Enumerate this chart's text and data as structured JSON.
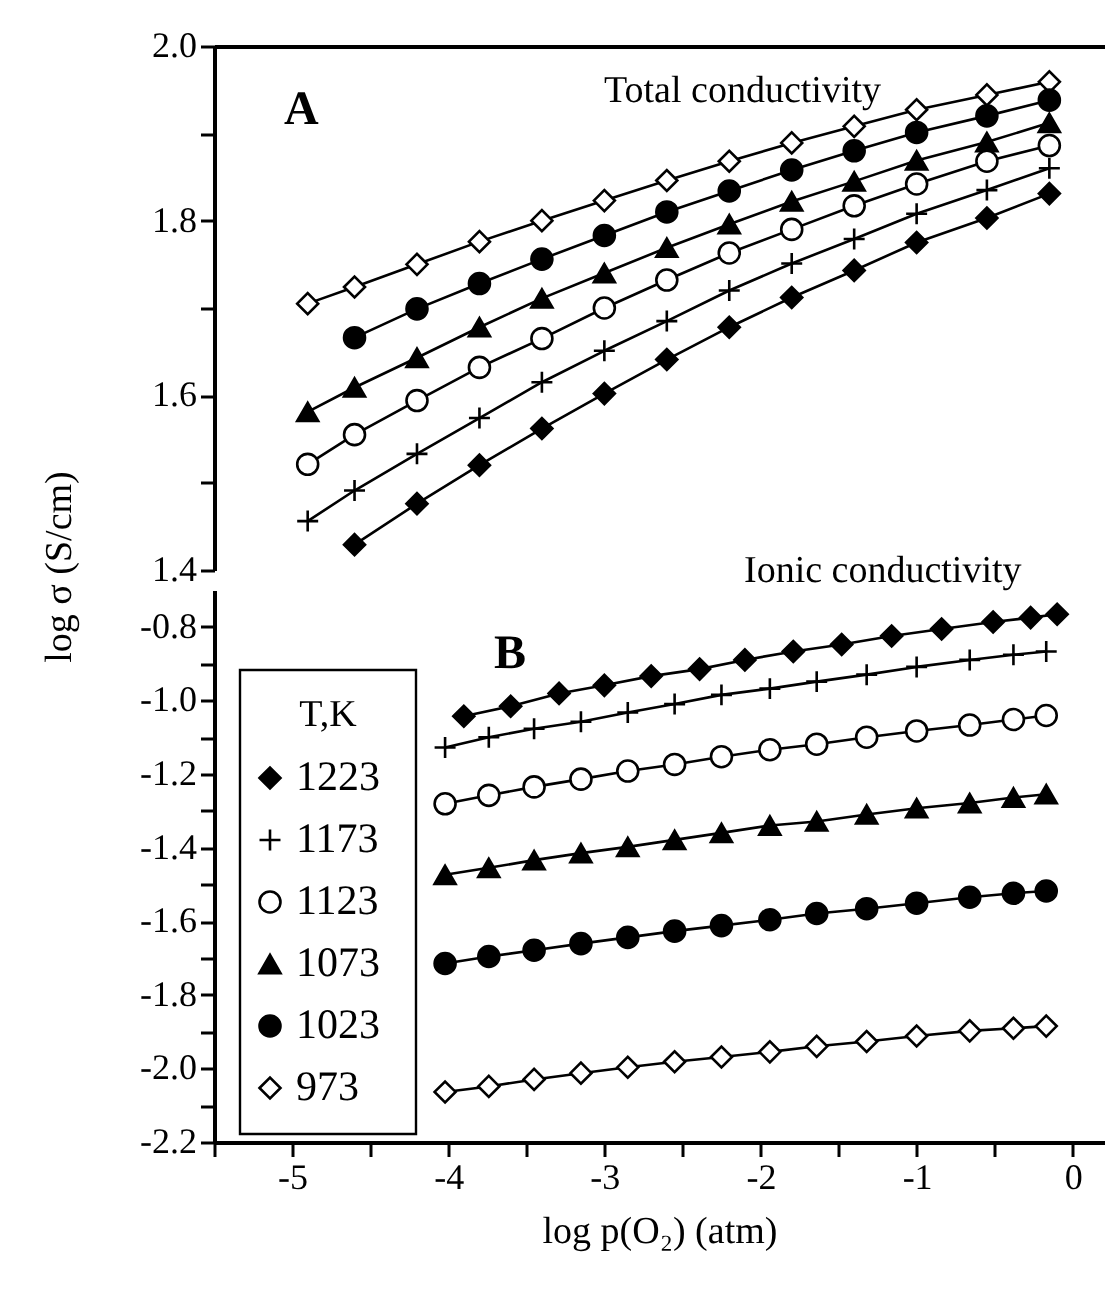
{
  "chart_data": [
    {
      "type": "line",
      "annotations": [
        "A",
        "Total conductivity",
        "Ionic conductivity"
      ],
      "tick_labels": "y",
      "xlim": [
        -5.5,
        0.2
      ],
      "ylim": [
        1.4,
        2.0
      ],
      "yticks": [
        {
          "value": 1.4,
          "label": "1.4"
        },
        {
          "value": 1.5,
          "label": null
        },
        {
          "value": 1.6,
          "label": "1.6"
        },
        {
          "value": 1.7,
          "label": null
        },
        {
          "value": 1.8,
          "label": "1.8"
        },
        {
          "value": 1.9,
          "label": null
        },
        {
          "value": 2.0,
          "label": "2.0"
        }
      ],
      "grid": false,
      "legend": false,
      "x": [
        -4.9,
        -4.6,
        -4.2,
        -3.8,
        -3.4,
        -3.0,
        -2.6,
        -2.2,
        -1.8,
        -1.4,
        -1.0,
        -0.55,
        -0.15
      ],
      "series": [
        {
          "color": "#000000",
          "marker": "diamond-open",
          "values": [
            1.705,
            1.724,
            1.75,
            1.776,
            1.8,
            1.823,
            1.846,
            1.868,
            1.889,
            1.908,
            1.927,
            1.944,
            1.959
          ]
        },
        {
          "color": "#000000",
          "marker": "circle",
          "x": [
            -4.6,
            -4.2,
            -3.8,
            -3.4,
            -3.0,
            -2.6,
            -2.2,
            -1.8,
            -1.4,
            -1.0,
            -0.55,
            -0.15
          ],
          "values": [
            1.666,
            1.699,
            1.728,
            1.756,
            1.783,
            1.81,
            1.834,
            1.858,
            1.88,
            1.901,
            1.92,
            1.938
          ]
        },
        {
          "color": "#000000",
          "marker": "triangle",
          "values": [
            1.581,
            1.609,
            1.643,
            1.678,
            1.711,
            1.74,
            1.769,
            1.796,
            1.822,
            1.845,
            1.869,
            1.89,
            1.912
          ]
        },
        {
          "color": "#000000",
          "marker": "circle-open",
          "values": [
            1.521,
            1.555,
            1.594,
            1.632,
            1.665,
            1.7,
            1.732,
            1.763,
            1.79,
            1.817,
            1.842,
            1.868,
            1.886
          ]
        },
        {
          "color": "#000000",
          "marker": "cross",
          "values": [
            1.456,
            1.491,
            1.533,
            1.574,
            1.615,
            1.651,
            1.685,
            1.72,
            1.751,
            1.779,
            1.808,
            1.835,
            1.86
          ]
        },
        {
          "color": "#000000",
          "marker": "diamond",
          "x": [
            -4.6,
            -4.2,
            -3.8,
            -3.4,
            -3.0,
            -2.6,
            -2.2,
            -1.8,
            -1.4,
            -1.0,
            -0.55,
            -0.15
          ],
          "values": [
            1.429,
            1.476,
            1.52,
            1.562,
            1.602,
            1.641,
            1.678,
            1.712,
            1.743,
            1.775,
            1.803,
            1.831
          ]
        }
      ]
    },
    {
      "type": "line",
      "annotations": [
        "B"
      ],
      "xlabel": "log p(O₂)  (atm)",
      "ylabel": "log σ (S/cm)",
      "legend_title": "T,K",
      "legend": "left",
      "xlim": [
        -5.5,
        0.2
      ],
      "xticks": [
        {
          "value": -5.5,
          "label": null
        },
        -5,
        {
          "value": -4.5,
          "label": null
        },
        -4,
        {
          "value": -3.5,
          "label": null
        },
        -3,
        {
          "value": -2.5,
          "label": null
        },
        -2,
        {
          "value": -1.5,
          "label": null
        },
        -1,
        {
          "value": -0.5,
          "label": null
        },
        0
      ],
      "ylim": [
        -2.2,
        -0.7
      ],
      "yticks": [
        {
          "value": -2.2,
          "label": "-2.2"
        },
        {
          "value": -2.1,
          "label": null
        },
        {
          "value": -2.0,
          "label": "-2.0"
        },
        {
          "value": -1.9,
          "label": null
        },
        {
          "value": -1.8,
          "label": "-1.8"
        },
        {
          "value": -1.7,
          "label": null
        },
        {
          "value": -1.6,
          "label": "-1.6"
        },
        {
          "value": -1.5,
          "label": null
        },
        {
          "value": -1.4,
          "label": "-1.4"
        },
        {
          "value": -1.3,
          "label": null
        },
        {
          "value": -1.2,
          "label": "-1.2"
        },
        {
          "value": -1.1,
          "label": null
        },
        {
          "value": -1.0,
          "label": "-1.0"
        },
        {
          "value": -0.9,
          "label": null
        },
        {
          "value": -0.8,
          "label": "-0.8"
        }
      ],
      "grid": false,
      "x": [
        -4.02,
        -3.74,
        -3.45,
        -3.15,
        -2.85,
        -2.55,
        -2.25,
        -1.94,
        -1.64,
        -1.32,
        -1.0,
        -0.66,
        -0.38,
        -0.17
      ],
      "series": [
        {
          "name": "1223",
          "color": "#000000",
          "marker": "diamond",
          "x": [
            -3.9,
            -3.6,
            -3.29,
            -3.0,
            -2.7,
            -2.39,
            -2.1,
            -1.79,
            -1.48,
            -1.16,
            -0.84,
            -0.51,
            -0.27,
            -0.1
          ],
          "values": [
            -1.043,
            -1.016,
            -0.981,
            -0.959,
            -0.934,
            -0.915,
            -0.89,
            -0.867,
            -0.848,
            -0.825,
            -0.806,
            -0.787,
            -0.775,
            -0.766
          ]
        },
        {
          "name": "1173",
          "color": "#000000",
          "marker": "cross",
          "values": [
            -1.128,
            -1.1,
            -1.077,
            -1.058,
            -1.033,
            -1.01,
            -0.985,
            -0.968,
            -0.949,
            -0.93,
            -0.909,
            -0.89,
            -0.876,
            -0.867
          ]
        },
        {
          "name": "1123",
          "color": "#000000",
          "marker": "circle-open",
          "values": [
            -1.281,
            -1.258,
            -1.235,
            -1.214,
            -1.192,
            -1.174,
            -1.153,
            -1.134,
            -1.119,
            -1.1,
            -1.083,
            -1.067,
            -1.052,
            -1.041
          ]
        },
        {
          "name": "1073",
          "color": "#000000",
          "marker": "triangle",
          "values": [
            -1.474,
            -1.455,
            -1.434,
            -1.415,
            -1.398,
            -1.379,
            -1.36,
            -1.34,
            -1.329,
            -1.31,
            -1.293,
            -1.279,
            -1.264,
            -1.255
          ]
        },
        {
          "name": "1023",
          "color": "#000000",
          "marker": "circle",
          "values": [
            -1.715,
            -1.696,
            -1.679,
            -1.661,
            -1.644,
            -1.627,
            -1.612,
            -1.596,
            -1.579,
            -1.566,
            -1.551,
            -1.535,
            -1.524,
            -1.518
          ]
        },
        {
          "name": "973",
          "color": "#000000",
          "marker": "diamond-open",
          "values": [
            -2.064,
            -2.049,
            -2.03,
            -2.013,
            -1.997,
            -1.982,
            -1.969,
            -1.955,
            -1.94,
            -1.927,
            -1.912,
            -1.898,
            -1.891,
            -1.885
          ]
        }
      ]
    }
  ]
}
